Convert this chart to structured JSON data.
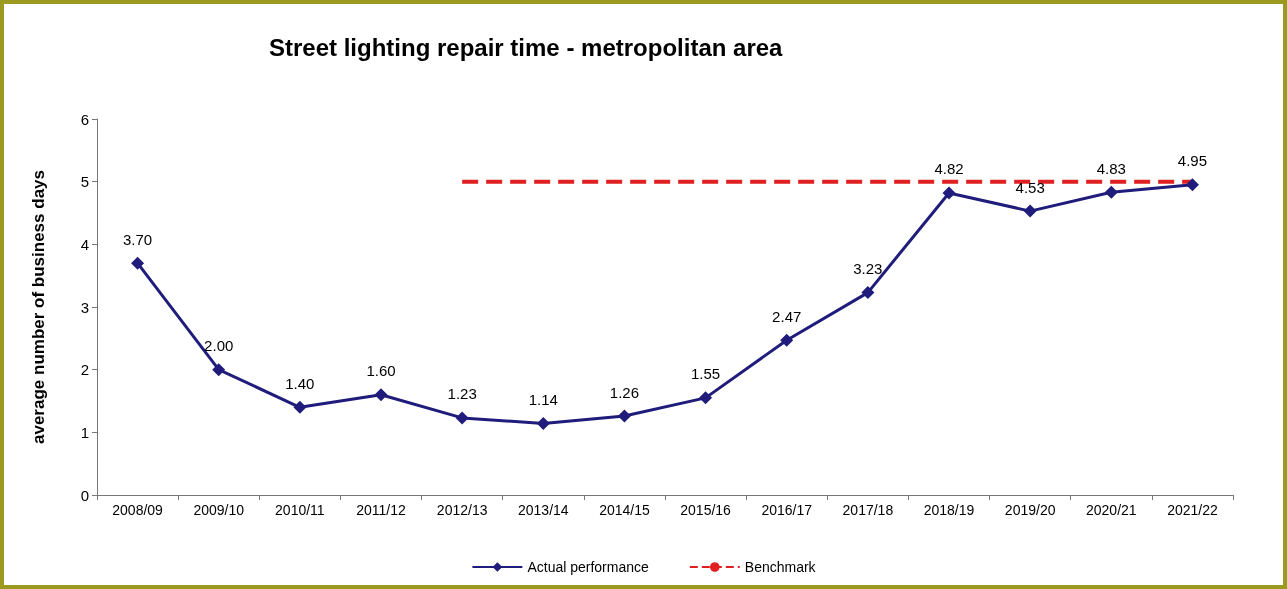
{
  "chart_data": {
    "type": "line",
    "title": "Street lighting repair time - metropolitan area",
    "ylabel": "average number of business days",
    "categories": [
      "2008/09",
      "2009/10",
      "2010/11",
      "2011/12",
      "2012/13",
      "2013/14",
      "2014/15",
      "2015/16",
      "2016/17",
      "2017/18",
      "2018/19",
      "2019/20",
      "2020/21",
      "2021/22"
    ],
    "series": [
      {
        "name": "Actual performance",
        "color": "#1f1c7c",
        "marker": "diamond",
        "line_style": "solid",
        "values": [
          3.7,
          2.0,
          1.4,
          1.6,
          1.23,
          1.14,
          1.26,
          1.55,
          2.47,
          3.23,
          4.82,
          4.53,
          4.83,
          4.95
        ],
        "value_labels": [
          "3.70",
          "2.00",
          "1.40",
          "1.60",
          "1.23",
          "1.14",
          "1.26",
          "1.55",
          "2.47",
          "3.23",
          "4.82",
          "4.53",
          "4.83",
          "4.95"
        ]
      },
      {
        "name": "Benchmark",
        "color": "#e02020",
        "marker": "none",
        "line_style": "dashed",
        "values": [
          null,
          null,
          null,
          null,
          5,
          5,
          5,
          5,
          5,
          5,
          5,
          5,
          5,
          5
        ]
      }
    ],
    "ylim": [
      0,
      6
    ],
    "yticks": [
      0,
      1,
      2,
      3,
      4,
      5,
      6
    ],
    "grid": false,
    "legend": "bottom"
  }
}
